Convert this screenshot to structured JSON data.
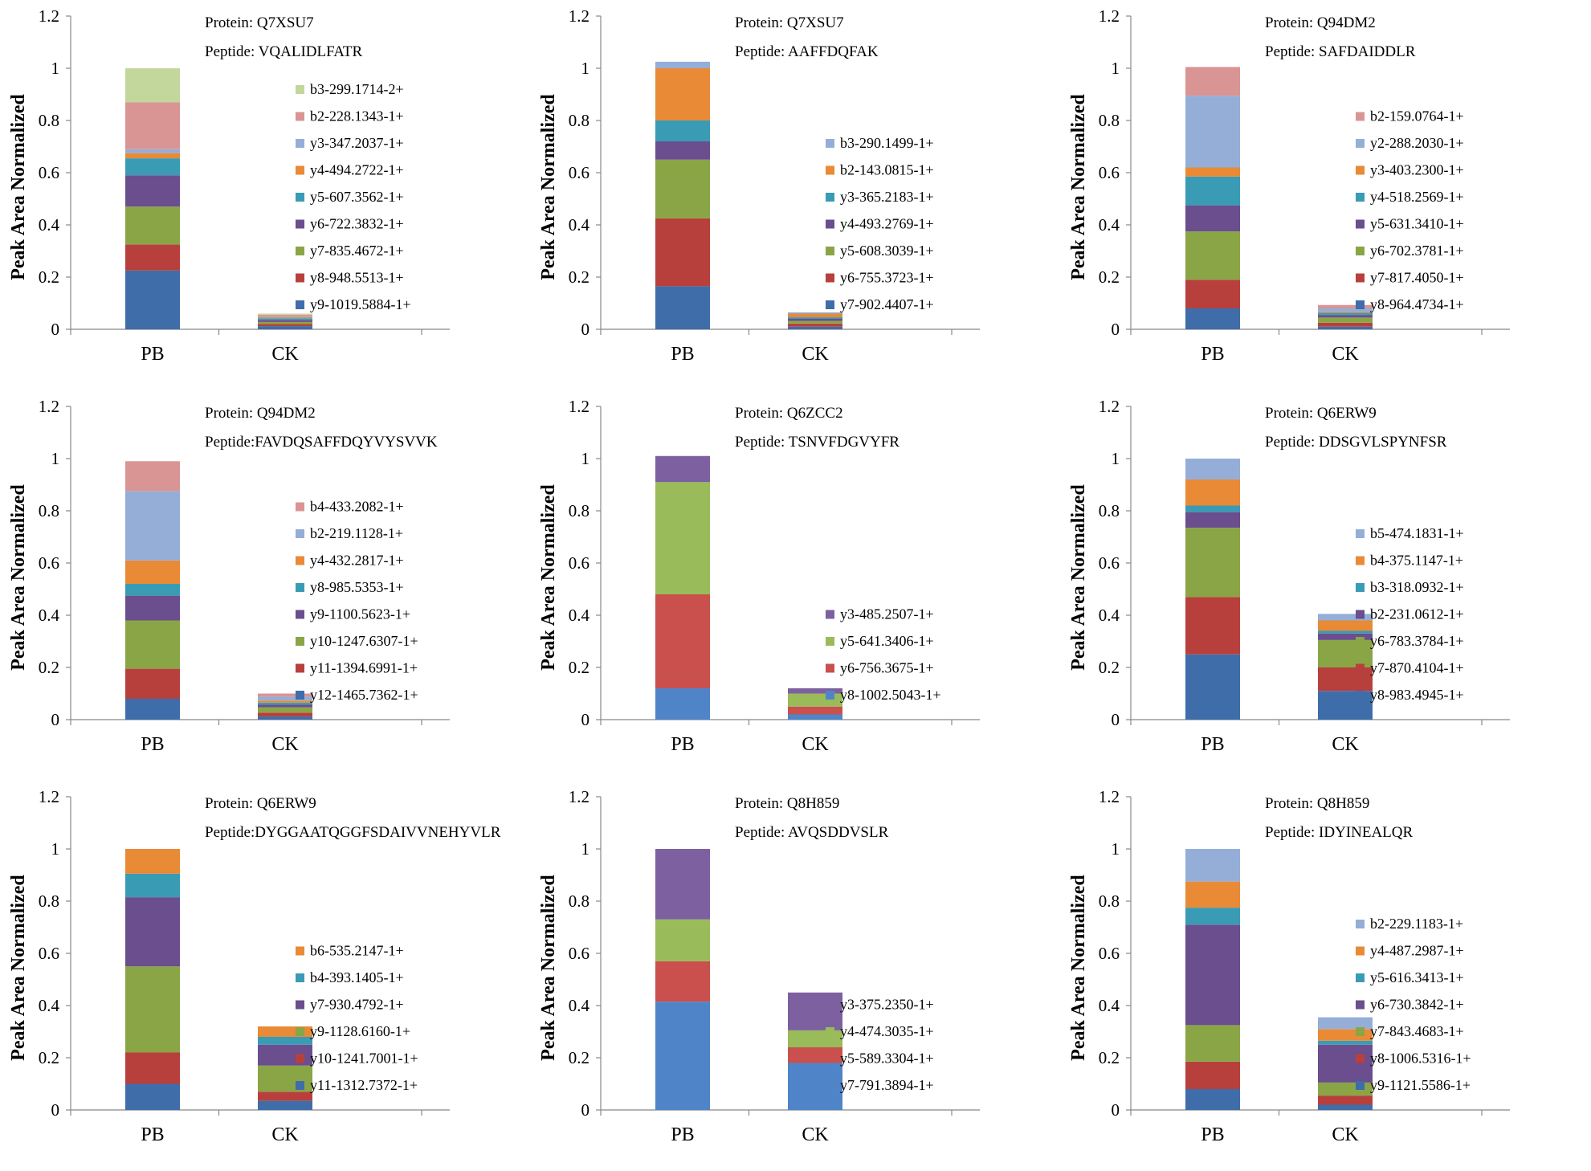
{
  "y_axis_label": "Peak Area Normalized",
  "protein_prefix": "Protein: ",
  "chart_data": [
    {
      "type": "stacked-bar",
      "protein": "Protein: Q7XSU7",
      "peptide": "Peptide: VQALIDLFATR",
      "ylabel": "Peak Area Normalized",
      "ylim": [
        0,
        1.2
      ],
      "yticks": [
        "0",
        "0.2",
        "0.4",
        "0.6",
        "0.8",
        "1",
        "1.2"
      ],
      "categories": [
        "PB",
        "CK"
      ],
      "series": [
        {
          "name": "y9-1019.5884-1+",
          "color": "#3E6DAA",
          "values": [
            0.225,
            0.012
          ]
        },
        {
          "name": "y8-948.5513-1+",
          "color": "#B8403C",
          "values": [
            0.1,
            0.008
          ]
        },
        {
          "name": "y7-835.4672-1+",
          "color": "#8AA545",
          "values": [
            0.145,
            0.008
          ]
        },
        {
          "name": "y6-722.3832-1+",
          "color": "#6A4E8E",
          "values": [
            0.12,
            0.008
          ]
        },
        {
          "name": "y5-607.3562-1+",
          "color": "#3A9BB5",
          "values": [
            0.065,
            0.006
          ]
        },
        {
          "name": "y4-494.2722-1+",
          "color": "#E88A36",
          "values": [
            0.02,
            0.004
          ]
        },
        {
          "name": "y3-347.2037-1+",
          "color": "#95AED8",
          "values": [
            0.015,
            0.004
          ]
        },
        {
          "name": "b2-228.1343-1+",
          "color": "#D99594",
          "values": [
            0.18,
            0.006
          ]
        },
        {
          "name": "b3-299.1714-2+",
          "color": "#C3D69B",
          "values": [
            0.13,
            0.004
          ]
        }
      ]
    },
    {
      "type": "stacked-bar",
      "protein": "Protein: Q7XSU7",
      "peptide": "Peptide: AAFFDQFAK",
      "ylabel": "Peak Area Normalized",
      "ylim": [
        0,
        1.2
      ],
      "yticks": [
        "0",
        "0.2",
        "0.4",
        "0.6",
        "0.8",
        "1",
        "1.2"
      ],
      "categories": [
        "PB",
        "CK"
      ],
      "series": [
        {
          "name": "y7-902.4407-1+",
          "color": "#3E6DAA",
          "values": [
            0.165,
            0.01
          ]
        },
        {
          "name": "y6-755.3723-1+",
          "color": "#B8403C",
          "values": [
            0.26,
            0.012
          ]
        },
        {
          "name": "y5-608.3039-1+",
          "color": "#8AA545",
          "values": [
            0.225,
            0.01
          ]
        },
        {
          "name": "y4-493.2769-1+",
          "color": "#6A4E8E",
          "values": [
            0.07,
            0.008
          ]
        },
        {
          "name": "y3-365.2183-1+",
          "color": "#3A9BB5",
          "values": [
            0.08,
            0.006
          ]
        },
        {
          "name": "b2-143.0815-1+",
          "color": "#E88A36",
          "values": [
            0.2,
            0.014
          ]
        },
        {
          "name": "b3-290.1499-1+",
          "color": "#95AED8",
          "values": [
            0.025,
            0.005
          ]
        }
      ]
    },
    {
      "type": "stacked-bar",
      "protein": "Protein: Q94DM2",
      "peptide": "Peptide: SAFDAIDDLR",
      "ylabel": "Peak Area Normalized",
      "ylim": [
        0,
        1.2
      ],
      "yticks": [
        "0",
        "0.2",
        "0.4",
        "0.6",
        "0.8",
        "1",
        "1.2"
      ],
      "categories": [
        "PB",
        "CK"
      ],
      "series": [
        {
          "name": "y8-964.4734-1+",
          "color": "#3E6DAA",
          "values": [
            0.08,
            0.01
          ]
        },
        {
          "name": "y7-817.4050-1+",
          "color": "#B8403C",
          "values": [
            0.11,
            0.015
          ]
        },
        {
          "name": "y6-702.3781-1+",
          "color": "#8AA545",
          "values": [
            0.185,
            0.02
          ]
        },
        {
          "name": "y5-631.3410-1+",
          "color": "#6A4E8E",
          "values": [
            0.1,
            0.01
          ]
        },
        {
          "name": "y4-518.2569-1+",
          "color": "#3A9BB5",
          "values": [
            0.11,
            0.008
          ]
        },
        {
          "name": "y3-403.2300-1+",
          "color": "#E88A36",
          "values": [
            0.035,
            0.004
          ]
        },
        {
          "name": "y2-288.2030-1+",
          "color": "#95AED8",
          "values": [
            0.275,
            0.013
          ]
        },
        {
          "name": "b2-159.0764-1+",
          "color": "#D99594",
          "values": [
            0.11,
            0.013
          ]
        }
      ]
    },
    {
      "type": "stacked-bar",
      "protein": "Protein: Q94DM2",
      "peptide": "Peptide:FAVDQSAFFDQYVYSVVK",
      "ylabel": "Peak Area Normalized",
      "ylim": [
        0,
        1.2
      ],
      "yticks": [
        "0",
        "0.2",
        "0.4",
        "0.6",
        "0.8",
        "1",
        "1.2"
      ],
      "categories": [
        "PB",
        "CK"
      ],
      "series": [
        {
          "name": "y12-1465.7362-1+",
          "color": "#3E6DAA",
          "values": [
            0.08,
            0.012
          ]
        },
        {
          "name": "y11-1394.6991-1+",
          "color": "#B8403C",
          "values": [
            0.115,
            0.015
          ]
        },
        {
          "name": "y10-1247.6307-1+",
          "color": "#8AA545",
          "values": [
            0.185,
            0.02
          ]
        },
        {
          "name": "y9-1100.5623-1+",
          "color": "#6A4E8E",
          "values": [
            0.095,
            0.01
          ]
        },
        {
          "name": "y8-985.5353-1+",
          "color": "#3A9BB5",
          "values": [
            0.045,
            0.008
          ]
        },
        {
          "name": "y4-432.2817-1+",
          "color": "#E88A36",
          "values": [
            0.09,
            0.008
          ]
        },
        {
          "name": "b2-219.1128-1+",
          "color": "#95AED8",
          "values": [
            0.265,
            0.015
          ]
        },
        {
          "name": "b4-433.2082-1+",
          "color": "#D99594",
          "values": [
            0.115,
            0.012
          ]
        }
      ]
    },
    {
      "type": "stacked-bar",
      "protein": "Protein: Q6ZCC2",
      "peptide": "Peptide: TSNVFDGVYFR",
      "ylabel": "Peak Area Normalized",
      "ylim": [
        0,
        1.2
      ],
      "yticks": [
        "0",
        "0.2",
        "0.4",
        "0.6",
        "0.8",
        "1",
        "1.2"
      ],
      "categories": [
        "PB",
        "CK"
      ],
      "series": [
        {
          "name": "y8-1002.5043-1+",
          "color": "#4F85C8",
          "values": [
            0.12,
            0.02
          ]
        },
        {
          "name": "y6-756.3675-1+",
          "color": "#C9504D",
          "values": [
            0.36,
            0.03
          ]
        },
        {
          "name": "y5-641.3406-1+",
          "color": "#9ABB59",
          "values": [
            0.43,
            0.05
          ]
        },
        {
          "name": "y3-485.2507-1+",
          "color": "#7D60A0",
          "values": [
            0.1,
            0.02
          ]
        }
      ]
    },
    {
      "type": "stacked-bar",
      "protein": "Protein: Q6ERW9",
      "peptide": "Peptide: DDSGVLSPYNFSR",
      "ylabel": "Peak Area Normalized",
      "ylim": [
        0,
        1.2
      ],
      "yticks": [
        "0",
        "0.2",
        "0.4",
        "0.6",
        "0.8",
        "1",
        "1.2"
      ],
      "categories": [
        "PB",
        "CK"
      ],
      "series": [
        {
          "name": "y8-983.4945-1+",
          "color": "#3E6DAA",
          "values": [
            0.25,
            0.11
          ]
        },
        {
          "name": "y7-870.4104-1+",
          "color": "#B8403C",
          "values": [
            0.22,
            0.09
          ]
        },
        {
          "name": "y6-783.3784-1+",
          "color": "#8AA545",
          "values": [
            0.265,
            0.105
          ]
        },
        {
          "name": "b2-231.0612-1+",
          "color": "#6A4E8E",
          "values": [
            0.06,
            0.025
          ]
        },
        {
          "name": "b3-318.0932-1+",
          "color": "#3A9BB5",
          "values": [
            0.025,
            0.01
          ]
        },
        {
          "name": "b4-375.1147-1+",
          "color": "#E88A36",
          "values": [
            0.1,
            0.04
          ]
        },
        {
          "name": "b5-474.1831-1+",
          "color": "#95AED8",
          "values": [
            0.08,
            0.025
          ]
        }
      ]
    },
    {
      "type": "stacked-bar",
      "protein": "Protein: Q6ERW9",
      "peptide": "Peptide:DYGGAATQGGFSDAIVVNEHYVLR",
      "ylabel": "Peak Area Normalized",
      "ylim": [
        0,
        1.2
      ],
      "yticks": [
        "0",
        "0.2",
        "0.4",
        "0.6",
        "0.8",
        "1",
        "1.2"
      ],
      "categories": [
        "PB",
        "CK"
      ],
      "series": [
        {
          "name": "y11-1312.7372-1+",
          "color": "#3E6DAA",
          "values": [
            0.1,
            0.035
          ]
        },
        {
          "name": "y10-1241.7001-1+",
          "color": "#B8403C",
          "values": [
            0.12,
            0.035
          ]
        },
        {
          "name": "y9-1128.6160-1+",
          "color": "#8AA545",
          "values": [
            0.33,
            0.1
          ]
        },
        {
          "name": "y7-930.4792-1+",
          "color": "#6A4E8E",
          "values": [
            0.265,
            0.08
          ]
        },
        {
          "name": "b4-393.1405-1+",
          "color": "#3A9BB5",
          "values": [
            0.09,
            0.03
          ]
        },
        {
          "name": "b6-535.2147-1+",
          "color": "#E88A36",
          "values": [
            0.095,
            0.04
          ]
        }
      ]
    },
    {
      "type": "stacked-bar",
      "protein": "Protein: Q8H859",
      "peptide": "Peptide: AVQSDDVSLR",
      "ylabel": "Peak Area Normalized",
      "ylim": [
        0,
        1.2
      ],
      "yticks": [
        "0",
        "0.2",
        "0.4",
        "0.6",
        "0.8",
        "1",
        "1.2"
      ],
      "categories": [
        "PB",
        "CK"
      ],
      "series": [
        {
          "name": "y7-791.3894-1+",
          "color": "#4F85C8",
          "values": [
            0.415,
            0.18
          ]
        },
        {
          "name": "y5-589.3304-1+",
          "color": "#C9504D",
          "values": [
            0.155,
            0.06
          ]
        },
        {
          "name": "y4-474.3035-1+",
          "color": "#9ABB59",
          "values": [
            0.16,
            0.065
          ]
        },
        {
          "name": "y3-375.2350-1+",
          "color": "#7D60A0",
          "values": [
            0.27,
            0.145
          ]
        }
      ]
    },
    {
      "type": "stacked-bar",
      "protein": "Protein: Q8H859",
      "peptide": "Peptide: IDYINEALQR",
      "ylabel": "Peak Area Normalized",
      "ylim": [
        0,
        1.2
      ],
      "yticks": [
        "0",
        "0.2",
        "0.4",
        "0.6",
        "0.8",
        "1",
        "1.2"
      ],
      "categories": [
        "PB",
        "CK"
      ],
      "series": [
        {
          "name": "y9-1121.5586-1+",
          "color": "#3E6DAA",
          "values": [
            0.08,
            0.02
          ]
        },
        {
          "name": "y8-1006.5316-1+",
          "color": "#B8403C",
          "values": [
            0.105,
            0.035
          ]
        },
        {
          "name": "y7-843.4683-1+",
          "color": "#8AA545",
          "values": [
            0.14,
            0.05
          ]
        },
        {
          "name": "y6-730.3842-1+",
          "color": "#6A4E8E",
          "values": [
            0.385,
            0.145
          ]
        },
        {
          "name": "y5-616.3413-1+",
          "color": "#3A9BB5",
          "values": [
            0.065,
            0.015
          ]
        },
        {
          "name": "y4-487.2987-1+",
          "color": "#E88A36",
          "values": [
            0.1,
            0.045
          ]
        },
        {
          "name": "b2-229.1183-1+",
          "color": "#95AED8",
          "values": [
            0.125,
            0.045
          ]
        }
      ]
    }
  ]
}
